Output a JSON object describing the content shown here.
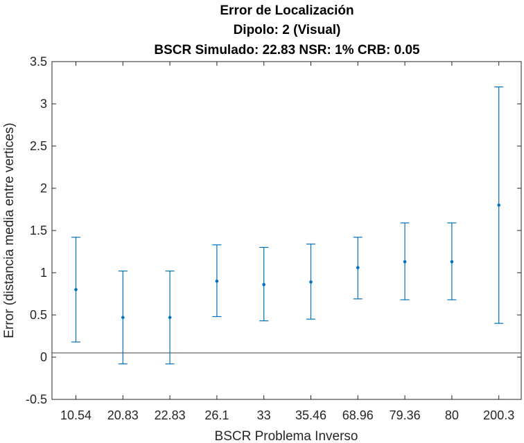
{
  "chart_data": {
    "type": "errorbar",
    "title": [
      "Error de Localización",
      "Dipolo: 2 (Visual)",
      "BSCR Simulado: 22.83 NSR: 1% CRB: 0.05"
    ],
    "xlabel": "BSCR Problema Inverso",
    "ylabel": "Error (distancia media entre vertices)",
    "categories": [
      "10.54",
      "20.83",
      "22.83",
      "26.1",
      "33",
      "35.46",
      "68.96",
      "79.36",
      "80",
      "200.3"
    ],
    "values": [
      0.8,
      0.47,
      0.47,
      0.9,
      0.86,
      0.89,
      1.06,
      1.13,
      1.13,
      1.8
    ],
    "lower": [
      0.18,
      -0.08,
      -0.08,
      0.48,
      0.43,
      0.45,
      0.69,
      0.68,
      0.68,
      0.4
    ],
    "upper": [
      1.42,
      1.02,
      1.02,
      1.33,
      1.3,
      1.34,
      1.42,
      1.59,
      1.59,
      3.2
    ],
    "reference_line": 0.05,
    "ylim": [
      -0.5,
      3.5
    ],
    "yticks": [
      -0.5,
      0,
      0.5,
      1,
      1.5,
      2,
      2.5,
      3,
      3.5
    ],
    "ytick_labels": [
      "-0.5",
      "0",
      "0.5",
      "1",
      "1.5",
      "2",
      "2.5",
      "3",
      "3.5"
    ],
    "grid": false,
    "colors": {
      "series": "#0072BD",
      "reference": "#404040",
      "axis": "#262626"
    }
  }
}
